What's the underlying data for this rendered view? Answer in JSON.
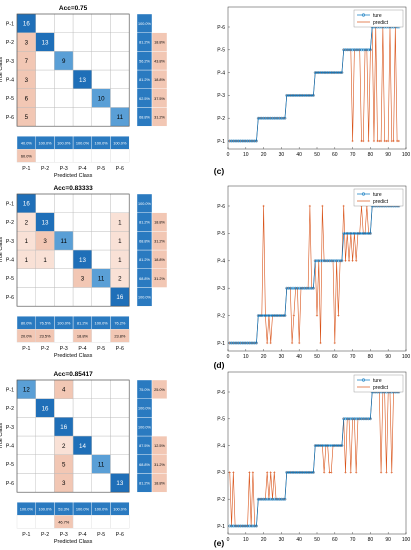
{
  "colors": {
    "diag_dark": "#1f6fb8",
    "diag_mid": "#5a9fd6",
    "offdiag": "#f2c7b4",
    "offdiag_light": "#f9e1d6",
    "summary_blue": "#2a7ac0",
    "summary_red": "#d98a6d",
    "line_true": "#0072BD",
    "line_pred": "#D95319"
  },
  "chart_data": [
    {
      "type": "heatmap",
      "title": "Acc=0.75",
      "ylabel": "True Class",
      "xlabel": "Predicted Class",
      "classes": [
        "P-1",
        "P-2",
        "P-3",
        "P-4",
        "P-5",
        "P-6"
      ],
      "matrix": [
        [
          16,
          0,
          0,
          0,
          0,
          0
        ],
        [
          3,
          13,
          0,
          0,
          0,
          0
        ],
        [
          7,
          0,
          9,
          0,
          0,
          0
        ],
        [
          3,
          0,
          0,
          13,
          0,
          0
        ],
        [
          6,
          0,
          0,
          0,
          10,
          0
        ],
        [
          5,
          0,
          0,
          0,
          0,
          11
        ]
      ],
      "row_summary": [
        [
          "100.0%",
          ""
        ],
        [
          "81.2%",
          "18.8%"
        ],
        [
          "56.2%",
          "43.8%"
        ],
        [
          "81.2%",
          "18.8%"
        ],
        [
          "62.5%",
          "37.5%"
        ],
        [
          "68.8%",
          "31.2%"
        ]
      ],
      "col_summary_correct": [
        "40.0%",
        "100.0%",
        "100.0%",
        "100.0%",
        "100.0%",
        "100.0%"
      ],
      "col_summary_error": [
        "60.0%",
        "",
        "",
        "",
        "",
        ""
      ]
    },
    {
      "type": "line",
      "panel_label": "(c)",
      "legend": [
        "ture",
        "predict"
      ],
      "legend_position": "top-right",
      "xlim": [
        0,
        100
      ],
      "xticks": [
        0,
        10,
        20,
        30,
        40,
        50,
        60,
        70,
        80,
        90,
        100
      ],
      "yticks": [
        "P-1",
        "P-2",
        "P-3",
        "P-4",
        "P-5",
        "P-6"
      ],
      "true_segments": [
        [
          1,
          16,
          1
        ],
        [
          17,
          32,
          2
        ],
        [
          33,
          48,
          3
        ],
        [
          49,
          64,
          4
        ],
        [
          65,
          80,
          5
        ],
        [
          81,
          96,
          6
        ]
      ],
      "predict_deviations": [
        [
          70,
          1
        ],
        [
          75,
          1
        ],
        [
          76,
          1
        ],
        [
          79,
          1
        ],
        [
          82,
          1
        ],
        [
          84,
          1
        ],
        [
          85,
          1
        ],
        [
          86,
          1
        ],
        [
          88,
          1
        ],
        [
          89,
          1
        ],
        [
          90,
          1
        ],
        [
          92,
          1
        ],
        [
          93,
          1
        ],
        [
          95,
          1
        ],
        [
          96,
          1
        ]
      ]
    },
    {
      "type": "heatmap",
      "title": "Acc=0.83333",
      "ylabel": "True Class",
      "xlabel": "Predicted Class",
      "classes": [
        "P-1",
        "P-2",
        "P-3",
        "P-4",
        "P-5",
        "P-6"
      ],
      "matrix": [
        [
          16,
          0,
          0,
          0,
          0,
          0
        ],
        [
          2,
          13,
          0,
          0,
          0,
          1
        ],
        [
          1,
          3,
          11,
          0,
          0,
          1
        ],
        [
          1,
          1,
          0,
          13,
          0,
          1
        ],
        [
          0,
          0,
          0,
          3,
          11,
          2
        ],
        [
          0,
          0,
          0,
          0,
          0,
          16
        ]
      ],
      "row_summary": [
        [
          "100.0%",
          ""
        ],
        [
          "81.2%",
          "18.8%"
        ],
        [
          "68.8%",
          "31.2%"
        ],
        [
          "81.2%",
          "18.8%"
        ],
        [
          "68.8%",
          "31.2%"
        ],
        [
          "100.0%",
          ""
        ]
      ],
      "col_summary_correct": [
        "80.0%",
        "76.5%",
        "100.0%",
        "81.2%",
        "100.0%",
        "76.2%"
      ],
      "col_summary_error": [
        "20.0%",
        "23.5%",
        "",
        "18.8%",
        "",
        "23.8%"
      ]
    },
    {
      "type": "line",
      "panel_label": "(d)",
      "legend": [
        "ture",
        "predict"
      ],
      "legend_position": "top-right",
      "xlim": [
        0,
        100
      ],
      "xticks": [
        0,
        10,
        20,
        30,
        40,
        50,
        60,
        70,
        80,
        90,
        100
      ],
      "yticks": [
        "P-1",
        "P-2",
        "P-3",
        "P-4",
        "P-5",
        "P-6"
      ],
      "true_segments": [
        [
          1,
          16,
          1
        ],
        [
          17,
          32,
          2
        ],
        [
          33,
          48,
          3
        ],
        [
          49,
          64,
          4
        ],
        [
          65,
          80,
          5
        ],
        [
          81,
          96,
          6
        ]
      ],
      "predict_deviations": [
        [
          20,
          6
        ],
        [
          22,
          1
        ],
        [
          24,
          1
        ],
        [
          36,
          1
        ],
        [
          37,
          2
        ],
        [
          40,
          1
        ],
        [
          46,
          6
        ],
        [
          50,
          2
        ],
        [
          52,
          1
        ],
        [
          53,
          6
        ],
        [
          60,
          1
        ],
        [
          62,
          2
        ],
        [
          65,
          6
        ],
        [
          66,
          4
        ],
        [
          68,
          4
        ],
        [
          70,
          4
        ],
        [
          72,
          4
        ],
        [
          75,
          6
        ],
        [
          78,
          6
        ]
      ]
    },
    {
      "type": "heatmap",
      "title": "Acc=0.85417",
      "ylabel": "True Class",
      "xlabel": "Predicted Class",
      "classes": [
        "P-1",
        "P-2",
        "P-3",
        "P-4",
        "P-5",
        "P-6"
      ],
      "matrix": [
        [
          12,
          0,
          4,
          0,
          0,
          0
        ],
        [
          0,
          16,
          0,
          0,
          0,
          0
        ],
        [
          0,
          0,
          16,
          0,
          0,
          0
        ],
        [
          0,
          0,
          2,
          14,
          0,
          0
        ],
        [
          0,
          0,
          5,
          0,
          11,
          0
        ],
        [
          0,
          0,
          3,
          0,
          0,
          13
        ]
      ],
      "row_summary": [
        [
          "75.0%",
          "25.0%"
        ],
        [
          "100.0%",
          ""
        ],
        [
          "100.0%",
          ""
        ],
        [
          "87.5%",
          "12.5%"
        ],
        [
          "68.8%",
          "31.2%"
        ],
        [
          "81.2%",
          "18.8%"
        ]
      ],
      "col_summary_correct": [
        "100.0%",
        "100.0%",
        "53.3%",
        "100.0%",
        "100.0%",
        "100.0%"
      ],
      "col_summary_error": [
        "",
        "",
        "46.7%",
        "",
        "",
        ""
      ]
    },
    {
      "type": "line",
      "panel_label": "(e)",
      "legend": [
        "ture",
        "predict"
      ],
      "legend_position": "top-right",
      "xlim": [
        0,
        100
      ],
      "xticks": [
        0,
        10,
        20,
        30,
        40,
        50,
        60,
        70,
        80,
        90,
        100
      ],
      "yticks": [
        "P-1",
        "P-2",
        "P-3",
        "P-4",
        "P-5",
        "P-6"
      ],
      "true_segments": [
        [
          1,
          16,
          1
        ],
        [
          17,
          32,
          2
        ],
        [
          33,
          48,
          3
        ],
        [
          49,
          64,
          4
        ],
        [
          65,
          80,
          5
        ],
        [
          81,
          96,
          6
        ]
      ],
      "predict_deviations": [
        [
          1,
          3
        ],
        [
          3,
          3
        ],
        [
          12,
          3
        ],
        [
          14,
          3
        ],
        [
          22,
          3
        ],
        [
          24,
          3
        ],
        [
          26,
          3
        ],
        [
          54,
          3
        ],
        [
          57,
          3
        ],
        [
          58,
          3
        ],
        [
          66,
          3
        ],
        [
          69,
          3
        ],
        [
          72,
          3
        ],
        [
          86,
          3
        ],
        [
          89,
          3
        ],
        [
          92,
          3
        ]
      ]
    }
  ]
}
